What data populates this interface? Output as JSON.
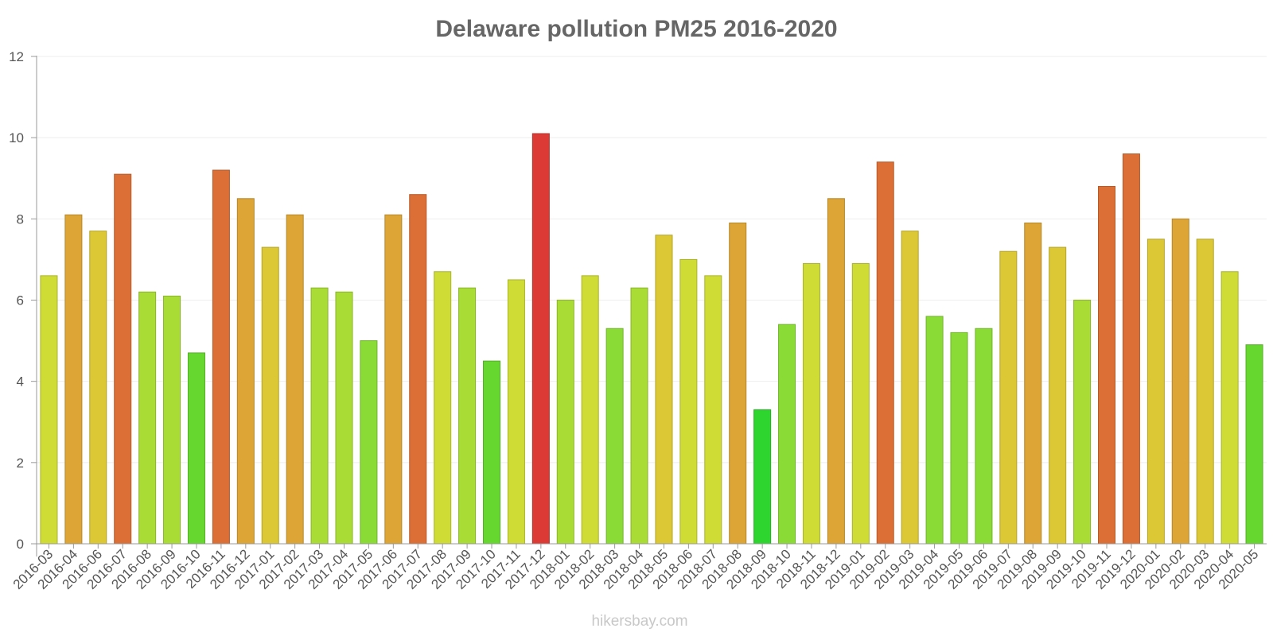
{
  "chart_data": {
    "type": "bar",
    "title": "Delaware pollution PM25 2016-2020",
    "xlabel": "",
    "ylabel": "",
    "ylim": [
      0,
      12
    ],
    "yticks": [
      0,
      2,
      4,
      6,
      8,
      10,
      12
    ],
    "grid": true,
    "categories": [
      "2016-03",
      "2016-04",
      "2016-06",
      "2016-07",
      "2016-08",
      "2016-09",
      "2016-10",
      "2016-11",
      "2016-12",
      "2017-01",
      "2017-02",
      "2017-03",
      "2017-04",
      "2017-05",
      "2017-06",
      "2017-07",
      "2017-08",
      "2017-09",
      "2017-10",
      "2017-11",
      "2017-12",
      "2018-01",
      "2018-02",
      "2018-03",
      "2018-04",
      "2018-05",
      "2018-06",
      "2018-07",
      "2018-08",
      "2018-09",
      "2018-10",
      "2018-11",
      "2018-12",
      "2019-01",
      "2019-02",
      "2019-03",
      "2019-04",
      "2019-05",
      "2019-06",
      "2019-07",
      "2019-08",
      "2019-09",
      "2019-10",
      "2019-11",
      "2019-12",
      "2020-01",
      "2020-02",
      "2020-03",
      "2020-04",
      "2020-05"
    ],
    "values": [
      6.6,
      8.1,
      7.7,
      9.1,
      6.2,
      6.1,
      4.7,
      9.2,
      8.5,
      7.3,
      8.1,
      6.3,
      6.2,
      5.0,
      8.1,
      8.6,
      6.7,
      6.3,
      4.5,
      6.5,
      10.1,
      6.0,
      6.6,
      5.3,
      6.3,
      7.6,
      7.0,
      6.6,
      7.9,
      3.3,
      5.4,
      6.9,
      8.5,
      6.9,
      9.4,
      7.7,
      5.6,
      5.2,
      5.3,
      7.2,
      7.9,
      7.3,
      6.0,
      8.8,
      9.6,
      7.5,
      8.0,
      7.5,
      6.7,
      4.9
    ]
  },
  "watermark": "hikersbay.com",
  "colors": {
    "axis": "#999999",
    "grid": "#eeeeee",
    "scale": [
      "#2ed52e",
      "#66d72e",
      "#8adb35",
      "#a9dc35",
      "#cfdc35",
      "#dcc835",
      "#dca535",
      "#dc6f35",
      "#dc3a35"
    ]
  }
}
